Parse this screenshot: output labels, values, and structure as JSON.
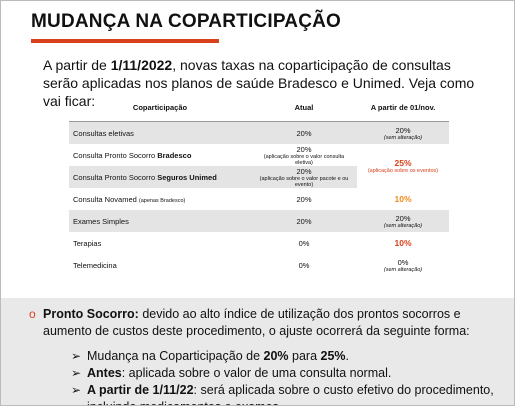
{
  "header": {
    "title": "MUDANÇA NA COPARTICIPAÇÃO"
  },
  "intro": [
    "A partir de ",
    "1/11/2022",
    ", novas taxas na coparticipação de consultas serão aplicadas nos planos de saúde Bradesco e Unimed. Veja como vai ficar:"
  ],
  "table": {
    "headers": [
      "Coparticipação",
      "Atual",
      "A partir de 01/nov."
    ],
    "rows": [
      [
        [
          "Consultas eletivas"
        ],
        [
          "20%"
        ],
        [
          "20%",
          "(sem alteração)"
        ]
      ],
      [
        [
          "Consulta Pronto Socorro ",
          "Bradesco"
        ],
        [
          "20%",
          "(aplicação sobre o valor consulta eletiva)"
        ],
        [
          "25%",
          "(aplicação sobre os eventos)"
        ]
      ],
      [
        [
          "Consulta Pronto Socorro ",
          "Seguros Unimed"
        ],
        [
          "20%",
          "(aplicação sobre o valor pacote e ou evento)"
        ]
      ],
      [
        [
          "Consulta Novamed ",
          "(apenas Bradesco)"
        ],
        [
          "20%"
        ],
        [
          "10%"
        ]
      ],
      [
        [
          "Exames Simples"
        ],
        [
          "20%"
        ],
        [
          "20%",
          "(sem alteração)"
        ]
      ],
      [
        [
          "Terapias"
        ],
        [
          "0%"
        ],
        [
          "10%"
        ]
      ],
      [
        [
          "Telemedicina"
        ],
        [
          "0%"
        ],
        [
          "0%",
          "(sem alteração)"
        ]
      ]
    ]
  },
  "note": {
    "lead": "Pronto Socorro:",
    "text": " devido ao alto índice de utilização dos prontos socorros e aumento de custos deste procedimento, o ajuste ocorrerá da seguinte forma:",
    "items": [
      [
        "Mudança na Coparticipação de ",
        "20%",
        " para ",
        "25%",
        "."
      ],
      [
        "Antes",
        ": aplicada sobre o valor de uma consulta normal."
      ],
      [
        "A partir de 1/11/22",
        ": será  aplicada sobre o custo efetivo do procedimento, incluindo medicamentos e exames."
      ]
    ]
  }
}
